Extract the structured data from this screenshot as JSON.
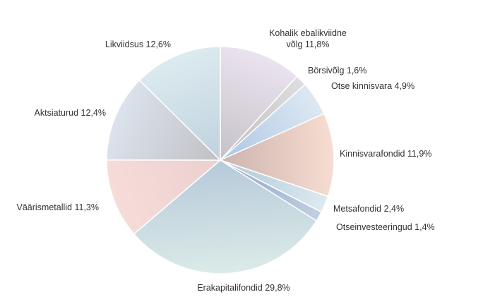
{
  "chart_data": {
    "type": "pie",
    "start_angle_deg": 0,
    "direction": "clockwise",
    "legend": "none",
    "slices": [
      {
        "label": [
          "Kohalik ebalikviidne",
          "võlg 11,8%"
        ],
        "value": 11.8,
        "color_light": "#ebe3ef",
        "color_dark": "#c5c2c8"
      },
      {
        "label": [
          "Börsivõlg 1,6%"
        ],
        "value": 1.6,
        "color_light": "#dedede",
        "color_dark": "#bdbdbd"
      },
      {
        "label": [
          "Otse kinnisvara 4,9%"
        ],
        "value": 4.9,
        "color_light": "#dde8f3",
        "color_dark": "#adc6e3"
      },
      {
        "label": [
          "Kinnisvarafondid 11,9%"
        ],
        "value": 11.9,
        "color_light": "#f7ddd1",
        "color_dark": "#ccb3ae"
      },
      {
        "label": [
          "Metsafondid 2,4%"
        ],
        "value": 2.4,
        "color_light": "#ddeaf0",
        "color_dark": "#aec7d6"
      },
      {
        "label": [
          "Otseinvesteeringud 1,4%"
        ],
        "value": 1.4,
        "color_light": "#c2cfe3",
        "color_dark": "#8fa4c5"
      },
      {
        "label": [
          "Erakapitalifondid 29,8%"
        ],
        "value": 29.8,
        "color_light": "#dcebe8",
        "color_dark": "#b6c9d9"
      },
      {
        "label": [
          "Väärismetallid 11,3%"
        ],
        "value": 11.3,
        "color_light": "#f6dcd9",
        "color_dark": "#ebcfcf"
      },
      {
        "label": [
          "Aktsiaturud 12,4%"
        ],
        "value": 12.4,
        "color_light": "#dce3ec",
        "color_dark": "#c0c0c4"
      },
      {
        "label": [
          "Likviidsus 12,6%"
        ],
        "value": 12.6,
        "color_light": "#dcebef",
        "color_dark": "#c1d1de"
      }
    ]
  }
}
